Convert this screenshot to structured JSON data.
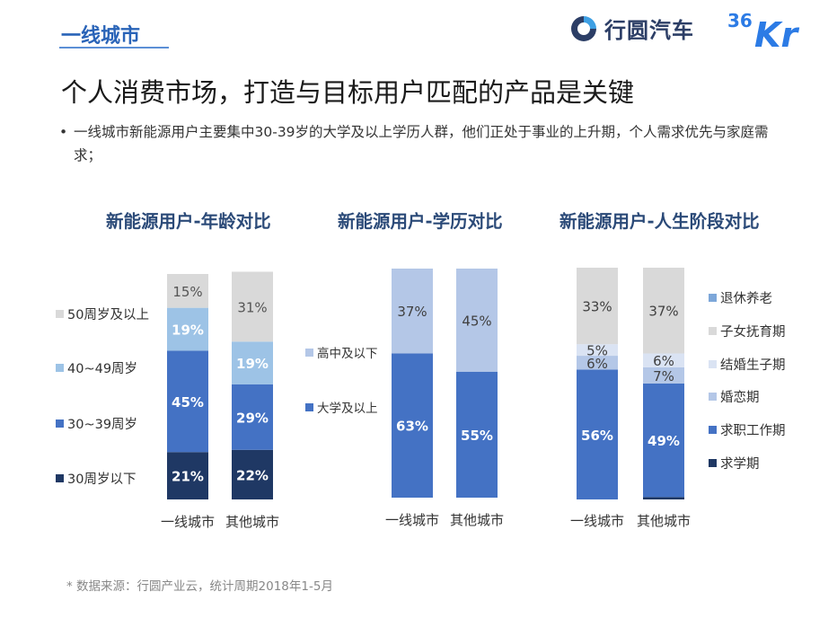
{
  "header": {
    "section_tag": "一线城市",
    "brand_name": "行圆汽车",
    "partner_logo": "36Kr"
  },
  "headline": "个人消费市场，打造与目标用户匹配的产品是关键",
  "bullet": "一线城市新能源用户主要集中30-39岁的大学及以上学历人群，他们正处于事业的上升期，个人需求优先与家庭需求；",
  "source": "* 数据来源：行圆产业云，统计周期2018年1-5月",
  "colors": {
    "accent": "#2a64b8",
    "dark_navy": "#1f3864",
    "medium_blue": "#4472c4",
    "light_blue": "#9dc3e6",
    "pale_blue": "#b4c7e7",
    "light_gray": "#d9d9d9",
    "steel_blue": "#7da7d9"
  },
  "chart_data": [
    {
      "type": "bar",
      "stacked": true,
      "percent": true,
      "title": "新能源用户-年龄对比",
      "categories": [
        "一线城市",
        "其他城市"
      ],
      "legend_position": "left",
      "series": [
        {
          "name": "30周岁以下",
          "values": [
            21,
            22
          ],
          "color": "#1f3864",
          "label_color": "#ffffff"
        },
        {
          "name": "30~39周岁",
          "values": [
            45,
            29
          ],
          "color": "#4472c4",
          "label_color": "#ffffff"
        },
        {
          "name": "40~49周岁",
          "values": [
            19,
            19
          ],
          "color": "#9dc3e6",
          "label_color": "#ffffff"
        },
        {
          "name": "50周岁及以上",
          "values": [
            15,
            31
          ],
          "color": "#d9d9d9",
          "label_color": "#555555"
        }
      ]
    },
    {
      "type": "bar",
      "stacked": true,
      "percent": true,
      "title": "新能源用户-学历对比",
      "categories": [
        "一线城市",
        "其他城市"
      ],
      "legend_position": "left",
      "series": [
        {
          "name": "大学及以上",
          "values": [
            63,
            55
          ],
          "color": "#4472c4",
          "label_color": "#ffffff"
        },
        {
          "name": "高中及以下",
          "values": [
            37,
            45
          ],
          "color": "#b4c7e7",
          "label_color": "#404040"
        }
      ]
    },
    {
      "type": "bar",
      "stacked": true,
      "percent": true,
      "title": "新能源用户-人生阶段对比",
      "categories": [
        "一线城市",
        "其他城市"
      ],
      "legend_position": "right",
      "series": [
        {
          "name": "求学期",
          "values": [
            0,
            1
          ],
          "color": "#1f3864",
          "label_color": "#ffffff"
        },
        {
          "name": "求职工作期",
          "values": [
            56,
            49
          ],
          "color": "#4472c4",
          "label_color": "#ffffff"
        },
        {
          "name": "婚恋期",
          "values": [
            6,
            7
          ],
          "color": "#b4c7e7",
          "label_color": "#404040"
        },
        {
          "name": "结婚生子期",
          "values": [
            5,
            6
          ],
          "color": "#dae3f3",
          "label_color": "#404040"
        },
        {
          "name": "子女抚育期",
          "values": [
            33,
            37
          ],
          "color": "#d9d9d9",
          "label_color": "#404040"
        },
        {
          "name": "退休养老",
          "values": [
            0,
            0
          ],
          "color": "#7da7d9",
          "label_color": "#404040"
        }
      ]
    }
  ]
}
